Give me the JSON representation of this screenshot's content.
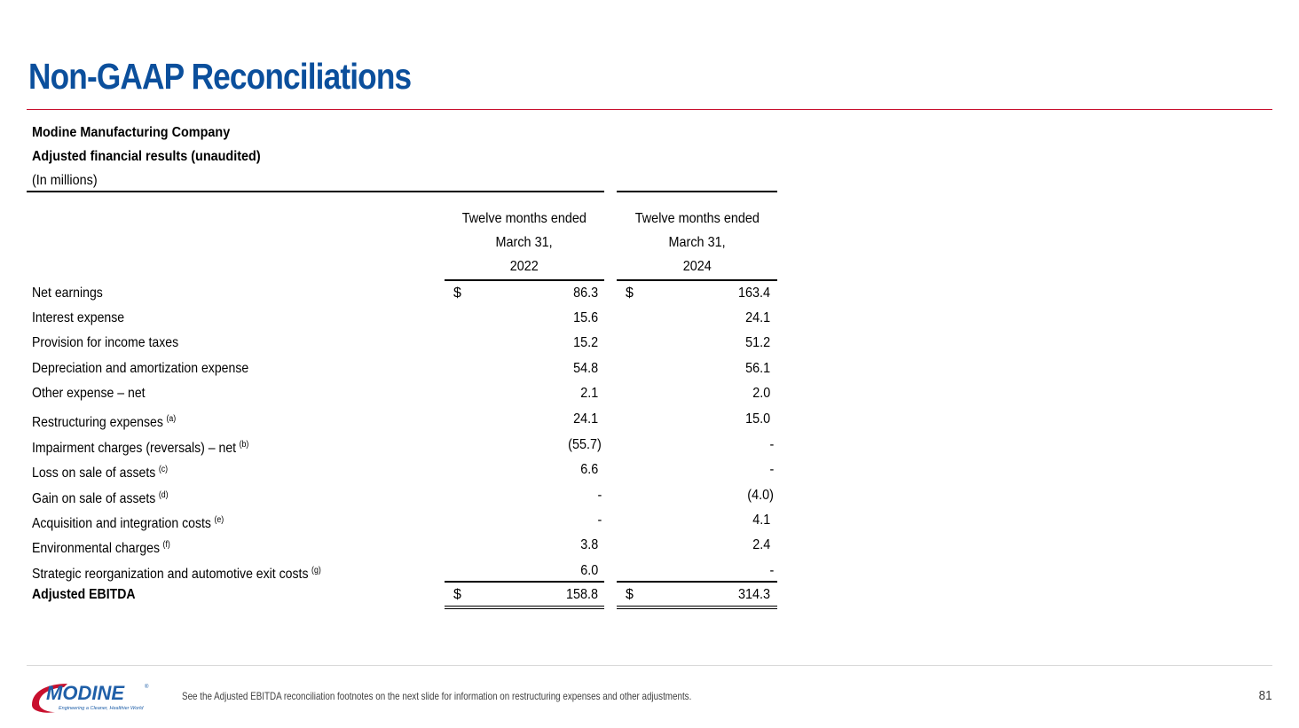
{
  "title": "Non-GAAP Reconciliations",
  "colors": {
    "title": "#0b4f9c",
    "rule": "#c8102e",
    "logo_blue": "#1f5fa8",
    "logo_red": "#c8102e"
  },
  "header": {
    "company": "Modine Manufacturing Company",
    "subtitle": "Adjusted financial results (unaudited)",
    "units": "(In millions)"
  },
  "columns": [
    {
      "line1": "Twelve months ended",
      "line2": "March 31,",
      "year": "2022"
    },
    {
      "line1": "Twelve months ended",
      "line2": "March 31,",
      "year": "2024"
    }
  ],
  "currency_symbol": "$",
  "rows": [
    {
      "label": "Net earnings",
      "note": "",
      "values": [
        "86.3",
        "163.4"
      ]
    },
    {
      "label": "Interest expense",
      "note": "",
      "values": [
        "15.6",
        "24.1"
      ]
    },
    {
      "label": "Provision for income taxes",
      "note": "",
      "values": [
        "15.2",
        "51.2"
      ]
    },
    {
      "label": "Depreciation and amortization expense",
      "note": "",
      "values": [
        "54.8",
        "56.1"
      ]
    },
    {
      "label": "Other expense – net",
      "note": "",
      "values": [
        "2.1",
        "2.0"
      ]
    },
    {
      "label": "Restructuring expenses",
      "note": "(a)",
      "values": [
        "24.1",
        "15.0"
      ]
    },
    {
      "label": "Impairment charges (reversals) – net",
      "note": "(b)",
      "values": [
        "(55.7)",
        "-"
      ]
    },
    {
      "label": "Loss on sale of assets",
      "note": "(c)",
      "values": [
        "6.6",
        "-"
      ]
    },
    {
      "label": "Gain on sale of assets",
      "note": "(d)",
      "values": [
        "-",
        "(4.0)"
      ]
    },
    {
      "label": "Acquisition and integration costs",
      "note": "(e)",
      "values": [
        "-",
        "4.1"
      ]
    },
    {
      "label": "Environmental charges",
      "note": "(f)",
      "values": [
        "3.8",
        "2.4"
      ]
    },
    {
      "label": "Strategic reorganization and automotive exit costs",
      "note": "(g)",
      "values": [
        "6.0",
        "-"
      ]
    }
  ],
  "total": {
    "label": "Adjusted EBITDA",
    "values": [
      "158.8",
      "314.3"
    ]
  },
  "footer": {
    "logo_text": "MODINE",
    "logo_trademark": "®",
    "tagline": "Engineering a Cleaner, Healthier World",
    "footnote": "See the Adjusted EBITDA reconciliation footnotes on the next slide for information on restructuring expenses and other adjustments.",
    "page_number": "81"
  }
}
